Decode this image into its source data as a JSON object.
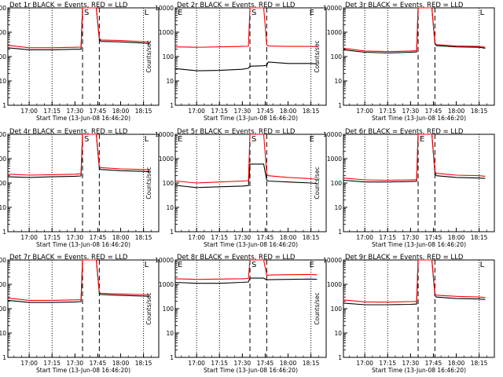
{
  "colors": {
    "black_series": "#000000",
    "red_series": "#ff0000",
    "background": "#ffffff"
  },
  "start_time_label": "Start Time (13-Jun-08 16:46:20)",
  "ylabel": "Counts/sec",
  "x_tick_labels": [
    "17:00",
    "17:15",
    "17:30",
    "17:45",
    "18:00",
    "18:15"
  ],
  "y_tick_labels": [
    "1",
    "10",
    "100",
    "1000",
    "10000"
  ],
  "markers": {
    "start": "S",
    "end": "E",
    "l": "L"
  },
  "chart_data": [
    {
      "type": "line",
      "title": "Det 1r BLACK = Events, RED = LLD",
      "xlabel": "Start Time (13-Jun-08 16:46:20)",
      "ylabel": "Counts/sec",
      "ylim": [
        1,
        10000
      ],
      "yscale": "log",
      "grid": false,
      "markers_present": [
        "S",
        "L"
      ],
      "series": [
        {
          "color": "black",
          "x": [
            "16:46",
            "17:00",
            "17:15",
            "17:30",
            "17:34",
            "17:35",
            "17:44",
            "17:46",
            "17:47",
            "18:00",
            "18:15",
            "18:19"
          ],
          "values": [
            230,
            190,
            190,
            200,
            200,
            10000,
            10000,
            500,
            420,
            400,
            360,
            340
          ]
        },
        {
          "color": "red",
          "x": [
            "16:46",
            "17:00",
            "17:15",
            "17:30",
            "17:34",
            "17:35",
            "17:44",
            "17:46",
            "17:47",
            "18:00",
            "18:15",
            "18:19"
          ],
          "values": [
            290,
            230,
            230,
            240,
            245,
            10000,
            10000,
            560,
            480,
            460,
            410,
            400
          ]
        }
      ]
    },
    {
      "type": "line",
      "title": "Det 2r BLACK = Events, RED = LLD",
      "xlabel": "Start Time (13-Jun-08 16:46:20)",
      "ylabel": "Counts/sec",
      "ylim": [
        1,
        10000
      ],
      "yscale": "log",
      "grid": false,
      "markers_present": [
        "E",
        "S",
        "E"
      ],
      "series": [
        {
          "color": "black",
          "x": [
            "16:46",
            "17:00",
            "17:15",
            "17:30",
            "17:34",
            "17:35",
            "17:44",
            "17:46",
            "17:47",
            "18:00",
            "18:15",
            "18:19"
          ],
          "values": [
            32,
            26,
            27,
            30,
            33,
            40,
            42,
            44,
            60,
            52,
            52,
            50
          ]
        },
        {
          "color": "red",
          "x": [
            "16:46",
            "17:00",
            "17:15",
            "17:30",
            "17:34",
            "17:35",
            "17:44",
            "17:46",
            "17:47",
            "18:00",
            "18:15",
            "18:19"
          ],
          "values": [
            250,
            240,
            250,
            260,
            265,
            10000,
            10000,
            300,
            270,
            260,
            260,
            255
          ]
        }
      ]
    },
    {
      "type": "line",
      "title": "Det 3r BLACK = Events, RED = LLD",
      "xlabel": "Start Time (13-Jun-08 16:46:20)",
      "ylabel": "Counts/sec",
      "ylim": [
        1,
        10000
      ],
      "yscale": "log",
      "grid": false,
      "markers_present": [
        "L"
      ],
      "series": [
        {
          "color": "black",
          "x": [
            "16:46",
            "17:00",
            "17:15",
            "17:30",
            "17:34",
            "17:35",
            "17:44",
            "17:46",
            "17:47",
            "18:00",
            "18:15",
            "18:19"
          ],
          "values": [
            190,
            150,
            140,
            150,
            155,
            10000,
            10000,
            330,
            280,
            250,
            240,
            220
          ]
        },
        {
          "color": "red",
          "x": [
            "16:46",
            "17:00",
            "17:15",
            "17:30",
            "17:34",
            "17:35",
            "17:44",
            "17:46",
            "17:47",
            "18:00",
            "18:15",
            "18:19"
          ],
          "values": [
            220,
            170,
            160,
            170,
            175,
            10000,
            10000,
            360,
            310,
            270,
            260,
            240
          ]
        }
      ]
    },
    {
      "type": "line",
      "title": "Det 4r BLACK = Events, RED = LLD",
      "xlabel": "Start Time (13-Jun-08 16:46:20)",
      "ylabel": "Counts/sec",
      "ylim": [
        1,
        10000
      ],
      "yscale": "log",
      "grid": false,
      "markers_present": [
        "S",
        "L"
      ],
      "series": [
        {
          "color": "black",
          "x": [
            "16:46",
            "17:00",
            "17:15",
            "17:30",
            "17:34",
            "17:35",
            "17:44",
            "17:46",
            "17:47",
            "18:00",
            "18:15",
            "18:19"
          ],
          "values": [
            180,
            170,
            180,
            190,
            195,
            10000,
            10000,
            400,
            360,
            320,
            300,
            290
          ]
        },
        {
          "color": "red",
          "x": [
            "16:46",
            "17:00",
            "17:15",
            "17:30",
            "17:34",
            "17:35",
            "17:44",
            "17:46",
            "17:47",
            "18:00",
            "18:15",
            "18:19"
          ],
          "values": [
            230,
            210,
            220,
            230,
            240,
            10000,
            10000,
            480,
            430,
            380,
            360,
            350
          ]
        }
      ]
    },
    {
      "type": "line",
      "title": "Det 5r BLACK = Events, RED = LLD",
      "xlabel": "Start Time (13-Jun-08 16:46:20)",
      "ylabel": "Counts/sec",
      "ylim": [
        1,
        10000
      ],
      "yscale": "log",
      "grid": false,
      "markers_present": [
        "E",
        "S",
        "E"
      ],
      "series": [
        {
          "color": "black",
          "x": [
            "16:46",
            "17:00",
            "17:15",
            "17:30",
            "17:34",
            "17:35",
            "17:44",
            "17:46",
            "17:47",
            "18:00",
            "18:15",
            "18:19"
          ],
          "values": [
            80,
            65,
            70,
            75,
            78,
            600,
            600,
            130,
            120,
            110,
            100,
            95
          ]
        },
        {
          "color": "red",
          "x": [
            "16:46",
            "17:00",
            "17:15",
            "17:30",
            "17:34",
            "17:35",
            "17:44",
            "17:46",
            "17:47",
            "18:00",
            "18:15",
            "18:19"
          ],
          "values": [
            120,
            100,
            110,
            120,
            125,
            10000,
            10000,
            230,
            200,
            170,
            150,
            140
          ]
        }
      ]
    },
    {
      "type": "line",
      "title": "Det 6r BLACK = Events, RED = LLD",
      "xlabel": "Start Time (13-Jun-08 16:46:20)",
      "ylabel": "Counts/sec",
      "ylim": [
        1,
        10000
      ],
      "yscale": "log",
      "grid": false,
      "markers_present": [
        "E"
      ],
      "series": [
        {
          "color": "black",
          "x": [
            "16:46",
            "17:00",
            "17:15",
            "17:30",
            "17:34",
            "17:35",
            "17:44",
            "17:46",
            "17:47",
            "18:00",
            "18:15",
            "18:19"
          ],
          "values": [
            130,
            110,
            110,
            115,
            118,
            10000,
            10000,
            250,
            200,
            170,
            160,
            155
          ]
        },
        {
          "color": "red",
          "x": [
            "16:46",
            "17:00",
            "17:15",
            "17:30",
            "17:34",
            "17:35",
            "17:44",
            "17:46",
            "17:47",
            "18:00",
            "18:15",
            "18:19"
          ],
          "values": [
            160,
            135,
            130,
            135,
            138,
            10000,
            10000,
            300,
            250,
            210,
            200,
            190
          ]
        }
      ]
    },
    {
      "type": "line",
      "title": "Det 7r BLACK = Events, RED = LLD",
      "xlabel": "Start Time (13-Jun-08 16:46:20)",
      "ylabel": "Counts/sec",
      "ylim": [
        1,
        10000
      ],
      "yscale": "log",
      "grid": false,
      "markers_present": [
        "L"
      ],
      "series": [
        {
          "color": "black",
          "x": [
            "16:46",
            "17:00",
            "17:15",
            "17:30",
            "17:34",
            "17:35",
            "17:44",
            "17:46",
            "17:47",
            "18:00",
            "18:15",
            "18:19"
          ],
          "values": [
            220,
            180,
            180,
            190,
            195,
            10000,
            10000,
            420,
            380,
            350,
            330,
            320
          ]
        },
        {
          "color": "red",
          "x": [
            "16:46",
            "17:00",
            "17:15",
            "17:30",
            "17:34",
            "17:35",
            "17:44",
            "17:46",
            "17:47",
            "18:00",
            "18:15",
            "18:19"
          ],
          "values": [
            270,
            220,
            220,
            230,
            235,
            10000,
            10000,
            470,
            430,
            400,
            380,
            370
          ]
        }
      ]
    },
    {
      "type": "line",
      "title": "Det 8r BLACK = Events, RED = LLD",
      "xlabel": "Start Time (13-Jun-08 16:46:20)",
      "ylabel": "Counts/sec",
      "ylim": [
        1,
        10000
      ],
      "yscale": "log",
      "grid": false,
      "markers_present": [
        "E",
        "S",
        "E"
      ],
      "series": [
        {
          "color": "black",
          "x": [
            "16:46",
            "17:00",
            "17:15",
            "17:30",
            "17:34",
            "17:35",
            "17:44",
            "17:46",
            "17:47",
            "18:00",
            "18:15",
            "18:19"
          ],
          "values": [
            1200,
            1100,
            1100,
            1200,
            1250,
            1800,
            1800,
            1500,
            1550,
            1600,
            1650,
            1600
          ]
        },
        {
          "color": "red",
          "x": [
            "16:46",
            "17:00",
            "17:15",
            "17:30",
            "17:34",
            "17:35",
            "17:44",
            "17:46",
            "17:47",
            "18:00",
            "18:15",
            "18:19"
          ],
          "values": [
            1700,
            1600,
            1650,
            1700,
            1750,
            10000,
            10000,
            2300,
            2400,
            2500,
            2550,
            2450
          ]
        }
      ]
    },
    {
      "type": "line",
      "title": "Det 9r BLACK = Events, RED = LLD",
      "xlabel": "Start Time (13-Jun-08 16:46:20)",
      "ylabel": "Counts/sec",
      "ylim": [
        1,
        10000
      ],
      "yscale": "log",
      "grid": false,
      "markers_present": [
        "L"
      ],
      "series": [
        {
          "color": "black",
          "x": [
            "16:46",
            "17:00",
            "17:15",
            "17:30",
            "17:34",
            "17:35",
            "17:44",
            "17:46",
            "17:47",
            "18:00",
            "18:15",
            "18:19"
          ],
          "values": [
            170,
            145,
            145,
            150,
            155,
            10000,
            10000,
            340,
            300,
            260,
            250,
            240
          ]
        },
        {
          "color": "red",
          "x": [
            "16:46",
            "17:00",
            "17:15",
            "17:30",
            "17:34",
            "17:35",
            "17:44",
            "17:46",
            "17:47",
            "18:00",
            "18:15",
            "18:19"
          ],
          "values": [
            230,
            190,
            185,
            195,
            200,
            10000,
            10000,
            400,
            360,
            320,
            300,
            290
          ]
        }
      ]
    }
  ]
}
